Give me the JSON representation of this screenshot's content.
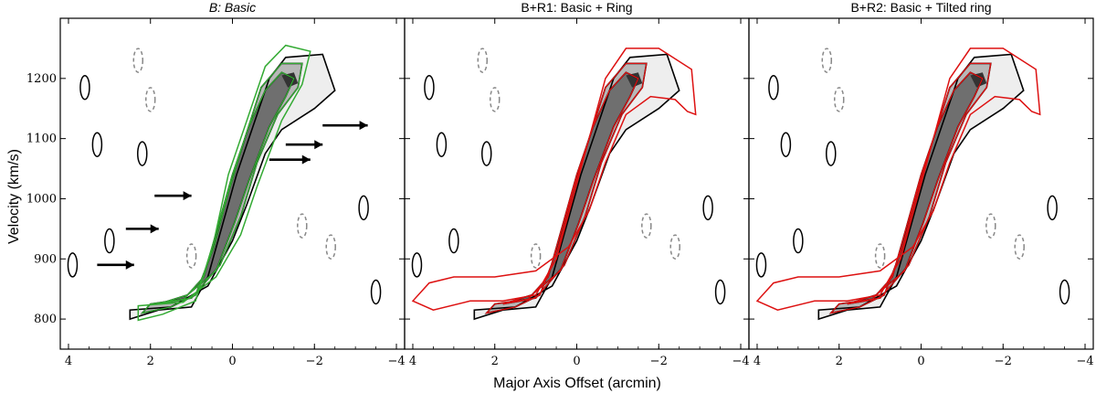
{
  "chart_data": {
    "type": "heatmap",
    "description_axes": "position-velocity diagram panels",
    "xlabel": "Major Axis Offset (arcmin)",
    "ylabel": "Velocity (km/s)",
    "xlim": [
      4.2,
      -4.2
    ],
    "ylim": [
      750,
      1300
    ],
    "x_ticks": [
      4,
      2,
      0,
      -2,
      -4
    ],
    "x_tick_labels": [
      "4",
      "2",
      "0",
      "−2",
      "−4"
    ],
    "y_ticks": [
      800,
      900,
      1000,
      1100,
      1200
    ],
    "y_tick_labels": [
      "800",
      "900",
      "1000",
      "1100",
      "1200"
    ],
    "grid": false,
    "colors": {
      "data_contour": "#000000",
      "negative_contour": "#888888",
      "model_basic": "#33aa33",
      "model_ring": "#dd1111"
    },
    "spine_points": [
      {
        "x": 2.0,
        "y": 830
      },
      {
        "x": 1.2,
        "y": 845
      },
      {
        "x": 0.7,
        "y": 880
      },
      {
        "x": 0.4,
        "y": 930
      },
      {
        "x": 0.2,
        "y": 990
      },
      {
        "x": 0.0,
        "y": 1040
      },
      {
        "x": -0.4,
        "y": 1110
      },
      {
        "x": -0.8,
        "y": 1160
      },
      {
        "x": -1.3,
        "y": 1200
      }
    ],
    "arrows": [
      {
        "x_from": 3.3,
        "x_to": 2.4,
        "y": 890
      },
      {
        "x_from": 2.6,
        "y": 950,
        "x_to": 1.8
      },
      {
        "x_from": 1.9,
        "x_to": 1.0,
        "y": 1005
      },
      {
        "x_from": -0.9,
        "x_to": -1.9,
        "y": 1065
      },
      {
        "x_from": -1.3,
        "x_to": -2.2,
        "y": 1090
      },
      {
        "x_from": -2.2,
        "x_to": -3.3,
        "y": 1122
      }
    ],
    "panels": [
      {
        "title": "B: Basic",
        "model": "basic",
        "color": "#33aa33",
        "italic": true
      },
      {
        "title": "B+R1: Basic + Ring",
        "model": "ring",
        "color": "#dd1111",
        "italic": false
      },
      {
        "title": "B+R2: Basic + Tilted ring",
        "model": "tilted",
        "color": "#dd1111",
        "italic": false
      }
    ]
  }
}
